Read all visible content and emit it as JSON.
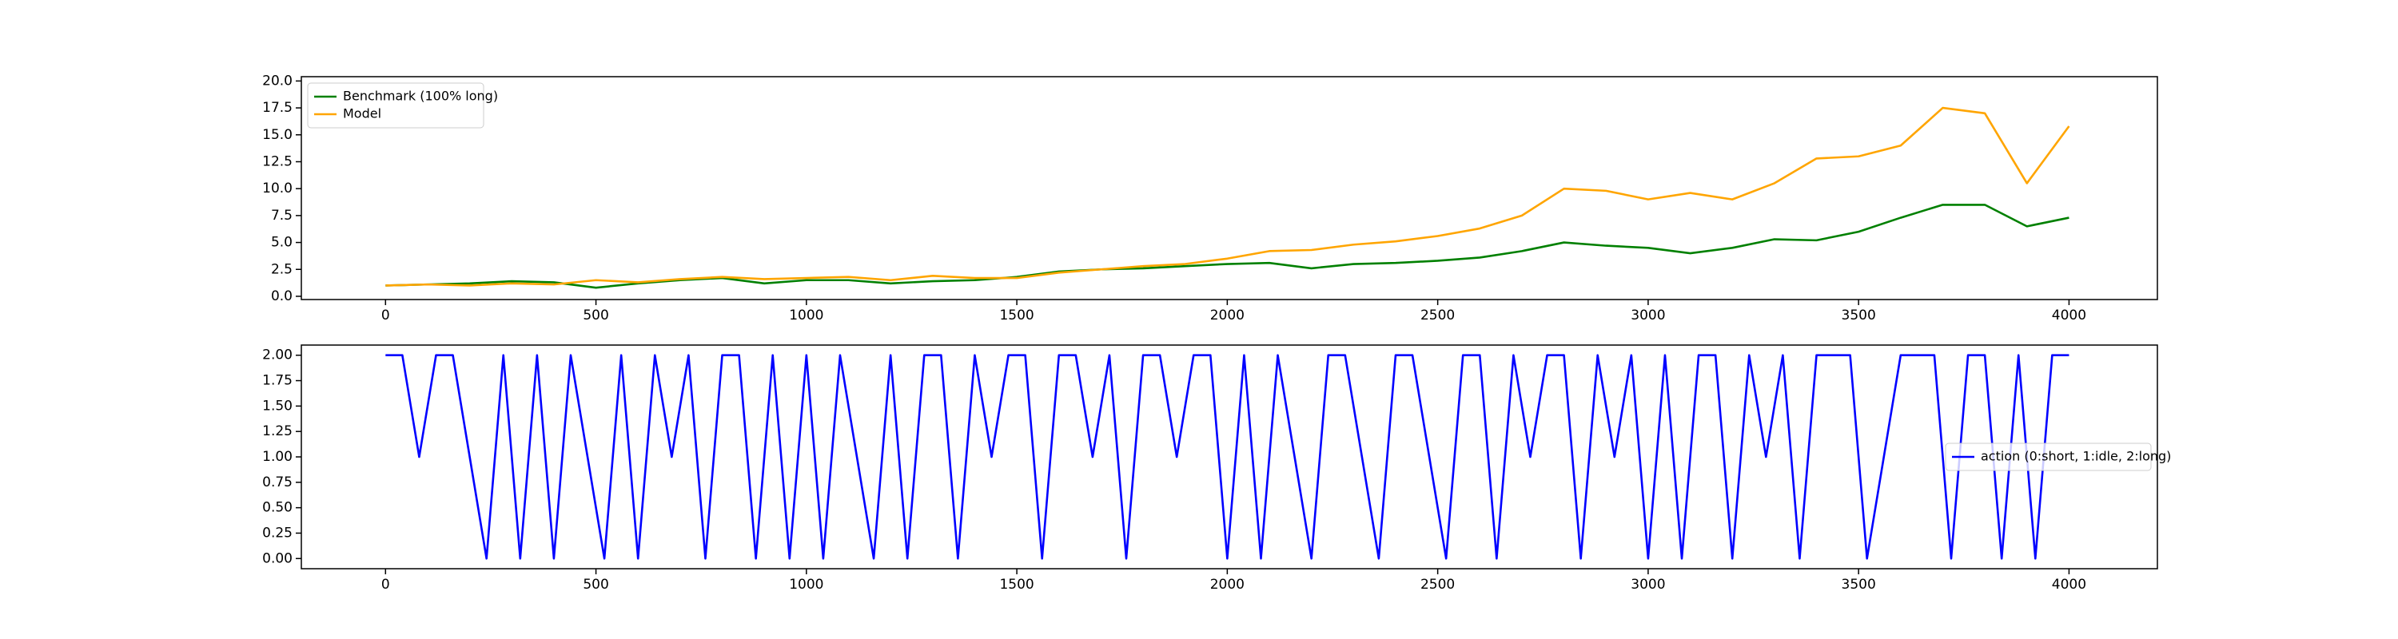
{
  "chart_data": [
    {
      "type": "line",
      "x": [
        0,
        100,
        200,
        300,
        400,
        500,
        600,
        700,
        800,
        900,
        1000,
        1100,
        1200,
        1300,
        1400,
        1500,
        1600,
        1700,
        1800,
        1900,
        2000,
        2100,
        2200,
        2300,
        2400,
        2500,
        2600,
        2700,
        2800,
        2900,
        3000,
        3100,
        3200,
        3300,
        3400,
        3500,
        3600,
        3700,
        3800,
        3900,
        4000
      ],
      "series": [
        {
          "name": "Benchmark (100% long)",
          "color": "green",
          "values": [
            1.0,
            1.1,
            1.2,
            1.4,
            1.3,
            0.8,
            1.2,
            1.5,
            1.7,
            1.2,
            1.5,
            1.5,
            1.2,
            1.4,
            1.5,
            1.8,
            2.3,
            2.5,
            2.6,
            2.8,
            3.0,
            3.1,
            2.6,
            3.0,
            3.1,
            3.3,
            3.6,
            4.2,
            5.0,
            4.7,
            4.5,
            4.0,
            4.5,
            5.3,
            5.2,
            6.0,
            7.3,
            8.5,
            8.5,
            6.5,
            7.3
          ]
        },
        {
          "name": "Model",
          "color": "orange",
          "values": [
            1.0,
            1.1,
            1.0,
            1.2,
            1.1,
            1.5,
            1.3,
            1.6,
            1.8,
            1.6,
            1.7,
            1.8,
            1.5,
            1.9,
            1.7,
            1.7,
            2.2,
            2.5,
            2.8,
            3.0,
            3.5,
            4.2,
            4.3,
            4.8,
            5.1,
            5.6,
            6.3,
            7.5,
            10.0,
            9.8,
            9.0,
            9.6,
            9.0,
            10.5,
            12.8,
            13.0,
            14.0,
            17.5,
            17.0,
            10.5,
            15.8
          ]
        }
      ],
      "xlim": [
        -200,
        4210
      ],
      "xticks": [
        0,
        500,
        1000,
        1500,
        2000,
        2500,
        3000,
        3500,
        4000
      ],
      "ylim": [
        -0.3,
        20.4
      ],
      "yticks": [
        {
          "value": 0,
          "label": "0.0"
        },
        2.5,
        {
          "value": 5,
          "label": "5.0"
        },
        7.5,
        {
          "value": 10,
          "label": "10.0"
        },
        12.5,
        {
          "value": 15,
          "label": "15.0"
        },
        17.5,
        {
          "value": 20,
          "label": "20.0"
        }
      ],
      "legend": "upper left"
    },
    {
      "type": "line",
      "x": [
        0,
        40,
        80,
        120,
        160,
        200,
        240,
        280,
        320,
        360,
        400,
        440,
        480,
        520,
        560,
        600,
        640,
        680,
        720,
        760,
        800,
        840,
        880,
        920,
        960,
        1000,
        1040,
        1080,
        1120,
        1160,
        1200,
        1240,
        1280,
        1320,
        1360,
        1400,
        1440,
        1480,
        1520,
        1560,
        1600,
        1640,
        1680,
        1720,
        1760,
        1800,
        1840,
        1880,
        1920,
        1960,
        2000,
        2040,
        2080,
        2120,
        2160,
        2200,
        2240,
        2280,
        2320,
        2360,
        2400,
        2440,
        2480,
        2520,
        2560,
        2600,
        2640,
        2680,
        2720,
        2760,
        2800,
        2840,
        2880,
        2920,
        2960,
        3000,
        3040,
        3080,
        3120,
        3160,
        3200,
        3240,
        3280,
        3320,
        3360,
        3400,
        3440,
        3480,
        3520,
        3560,
        3600,
        3640,
        3680,
        3720,
        3760,
        3800,
        3840,
        3880,
        3920,
        3960,
        4000
      ],
      "series": [
        {
          "name": "action (0:short, 1:idle, 2:long)",
          "color": "blue",
          "values": [
            2,
            2,
            1,
            2,
            2,
            1,
            0,
            2,
            0,
            2,
            0,
            2,
            1,
            0,
            2,
            0,
            2,
            1,
            2,
            0,
            2,
            2,
            0,
            2,
            0,
            2,
            0,
            2,
            1,
            0,
            2,
            0,
            2,
            2,
            0,
            2,
            1,
            2,
            2,
            0,
            2,
            2,
            1,
            2,
            0,
            2,
            2,
            1,
            2,
            2,
            0,
            2,
            0,
            2,
            1,
            0,
            2,
            2,
            1,
            0,
            2,
            2,
            1,
            0,
            2,
            2,
            0,
            2,
            1,
            2,
            2,
            0,
            2,
            1,
            2,
            0,
            2,
            0,
            2,
            2,
            0,
            2,
            1,
            2,
            0,
            2,
            2,
            2,
            0,
            1,
            2,
            2,
            2,
            0,
            2,
            2,
            0,
            2,
            0,
            2,
            2
          ]
        }
      ],
      "xlim": [
        -200,
        4210
      ],
      "xticks": [
        0,
        500,
        1000,
        1500,
        2000,
        2500,
        3000,
        3500,
        4000
      ],
      "ylim": [
        -0.1,
        2.1
      ],
      "yticks": [
        {
          "value": 0,
          "label": "0.00"
        },
        0.25,
        {
          "value": 0.5,
          "label": "0.50"
        },
        0.75,
        {
          "value": 1,
          "label": "1.00"
        },
        1.25,
        {
          "value": 1.5,
          "label": "1.50"
        },
        1.75,
        {
          "value": 2,
          "label": "2.00"
        }
      ],
      "legend": "center right"
    }
  ]
}
